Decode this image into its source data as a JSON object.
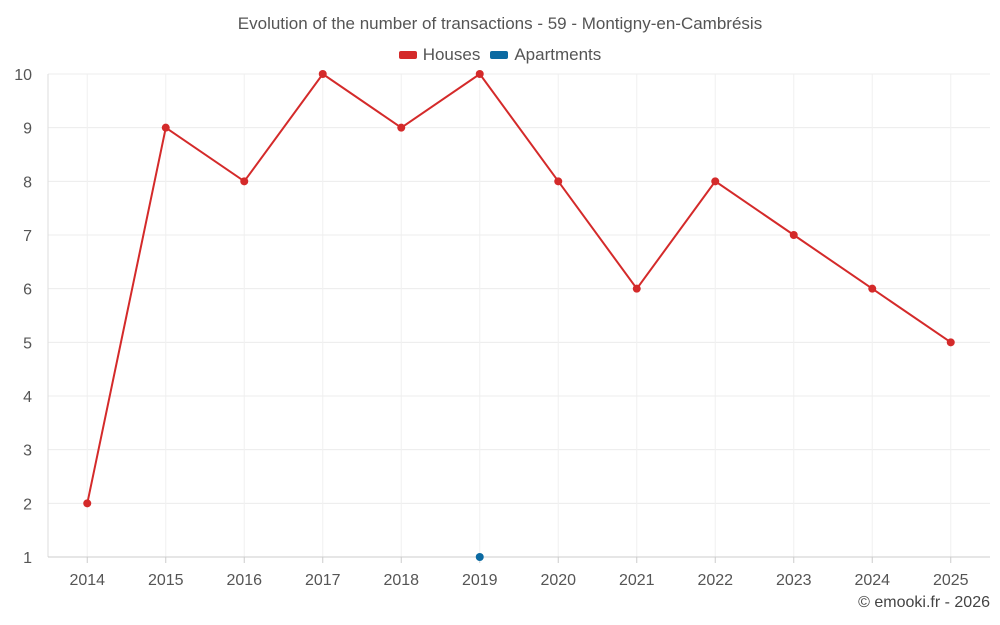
{
  "chart_data": {
    "type": "line",
    "title": "Evolution of the number of transactions - 59 - Montigny-en-Cambrésis",
    "xlabel": "",
    "ylabel": "",
    "categories": [
      "2014",
      "2015",
      "2016",
      "2017",
      "2018",
      "2019",
      "2020",
      "2021",
      "2022",
      "2023",
      "2024",
      "2025"
    ],
    "series": [
      {
        "name": "Houses",
        "color": "#d42a2a",
        "values": [
          2,
          9,
          8,
          10,
          9,
          10,
          8,
          6,
          8,
          7,
          6,
          5
        ]
      },
      {
        "name": "Apartments",
        "color": "#0b6aa2",
        "values": [
          null,
          null,
          null,
          null,
          null,
          1,
          null,
          null,
          null,
          null,
          null,
          null
        ]
      }
    ],
    "ylim": [
      1,
      10
    ],
    "yticks": [
      "1",
      "2",
      "3",
      "4",
      "5",
      "6",
      "7",
      "8",
      "9",
      "10"
    ],
    "grid": true,
    "legend_position": "top-center"
  },
  "credit": "© emooki.fr - 2026"
}
